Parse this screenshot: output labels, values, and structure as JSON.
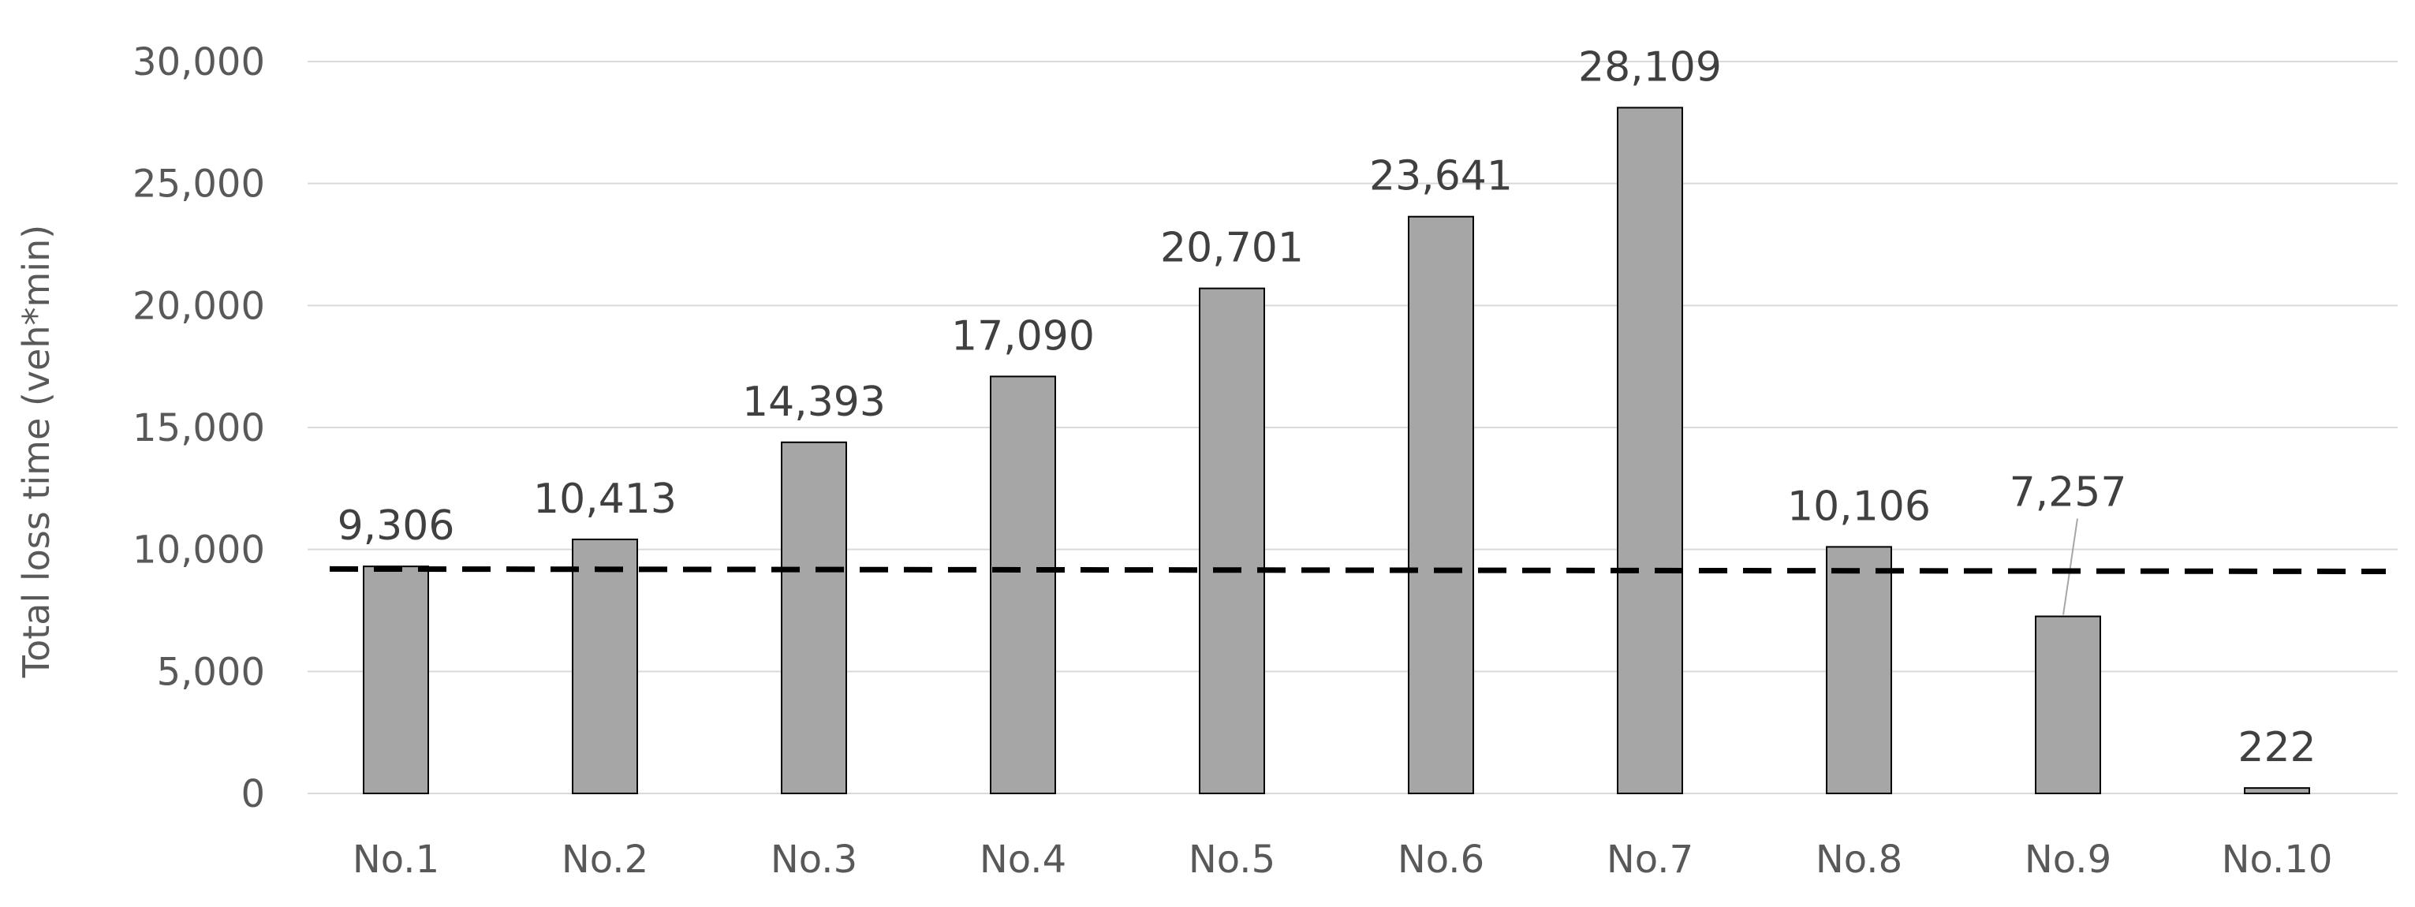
{
  "chart_data": {
    "type": "bar",
    "categories": [
      "No.1",
      "No.2",
      "No.3",
      "No.4",
      "No.5",
      "No.6",
      "No.7",
      "No.8",
      "No.9",
      "No.10"
    ],
    "values": [
      9306,
      10413,
      14393,
      17090,
      20701,
      23641,
      28109,
      10106,
      7257,
      222
    ],
    "data_labels": [
      "9,306",
      "10,413",
      "14,393",
      "17,090",
      "20,701",
      "23,641",
      "28,109",
      "10,106",
      "7,257",
      "222"
    ],
    "ylabel": "Total loss time (veh*min)",
    "xlabel": "",
    "ylim": [
      0,
      30000
    ],
    "y_ticks": [
      0,
      5000,
      10000,
      15000,
      20000,
      25000,
      30000
    ],
    "y_tick_labels": [
      "0",
      "5,000",
      "10,000",
      "15,000",
      "20,000",
      "25,000",
      "30,000"
    ],
    "reference_line": {
      "style": "dashed",
      "y_start": 9200,
      "y_end": 9100,
      "color": "#000000"
    },
    "grid": true,
    "legend": "none",
    "colors": {
      "bar_fill": "#a6a6a6",
      "bar_stroke": "#000000",
      "grid": "#d9d9d9",
      "text": "#595959"
    }
  }
}
